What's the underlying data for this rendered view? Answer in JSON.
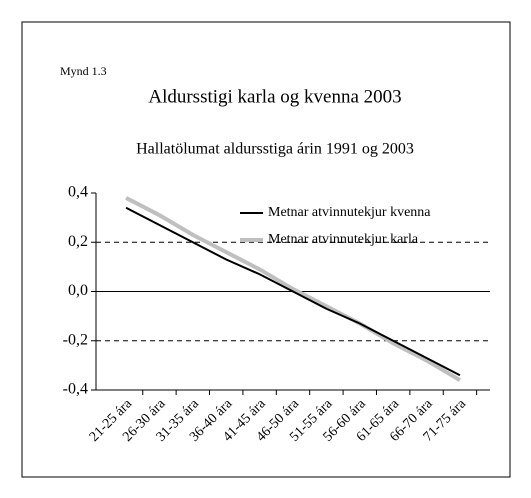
{
  "chart_data": {
    "type": "line",
    "label": "Mynd 1.3",
    "title": "Aldursstigi karla og kvenna 2003",
    "subtitle": "Hallatölumat aldursstiga árin 1991 og 2003",
    "categories": [
      "21-25 ára",
      "26-30 ára",
      "31-35 ára",
      "36-40 ára",
      "41-45 ára",
      "46-50 ára",
      "51-55 ára",
      "56-60 ára",
      "61-65 ára",
      "66-70 ára",
      "71-75 ára"
    ],
    "series": [
      {
        "name": "Metnar atvinnutekjur kvenna",
        "color": "#000000",
        "values": [
          0.34,
          0.27,
          0.2,
          0.13,
          0.07,
          0,
          -0.07,
          -0.13,
          -0.2,
          -0.27,
          -0.34
        ]
      },
      {
        "name": "Metnar atvinnutekjur karla",
        "color": "#bfbfbf",
        "values": [
          0.38,
          0.31,
          0.23,
          0.16,
          0.09,
          0.01,
          -0.06,
          -0.13,
          -0.21,
          -0.28,
          -0.36
        ]
      }
    ],
    "ylim": [
      -0.4,
      0.4
    ],
    "yticks": [
      {
        "value": -0.4,
        "label": "-0,4"
      },
      {
        "value": -0.2,
        "label": "-0,2"
      },
      {
        "value": 0,
        "label": "0,0"
      },
      {
        "value": 0.2,
        "label": "0,2"
      },
      {
        "value": 0.4,
        "label": "0,4"
      }
    ],
    "grid": true,
    "legend": "upper right"
  }
}
